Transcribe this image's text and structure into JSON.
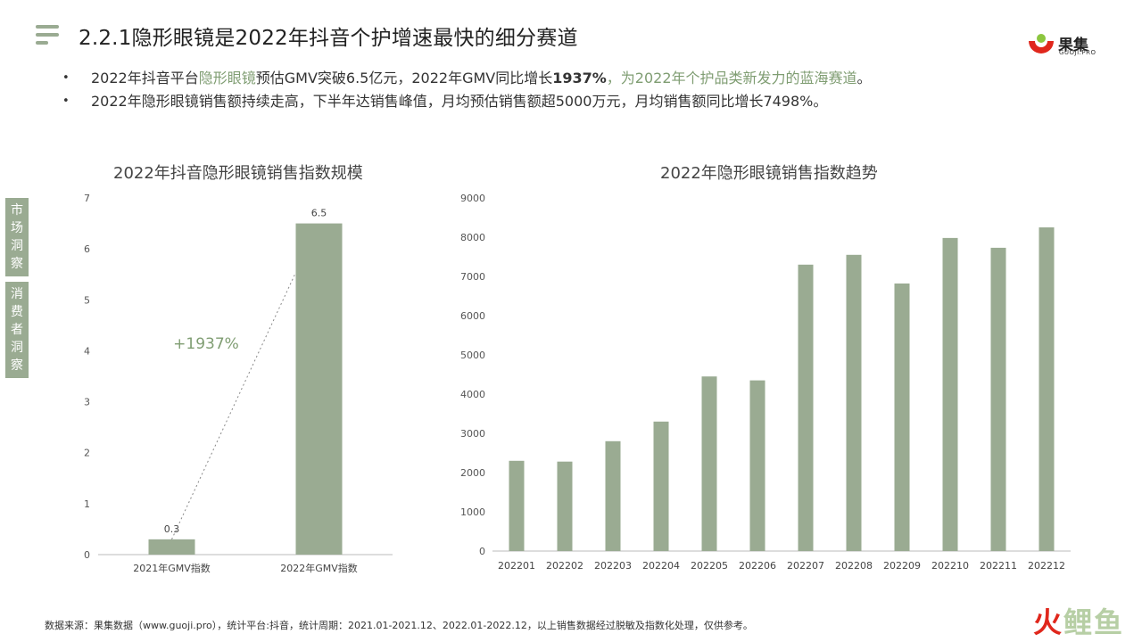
{
  "header": {
    "title": "2.2.1隐形眼镜是2022年抖音个护增速最快的细分赛道",
    "logo_text": "果集",
    "logo_sub": "GUOJI.PRO"
  },
  "bullets": [
    {
      "p1": "2022年抖音平台",
      "hl1": "隐形眼镜",
      "p2": "预估GMV突破6.5亿元，2022年GMV同比增长",
      "bold": "1937%",
      "hl2": "，为2022年个护品类新发力的蓝海赛道",
      "p3": "。"
    },
    {
      "text": "2022年隐形眼镜销售额持续走高，下半年达销售峰值，月均预估销售额超5000万元，月均销售额同比增长7498%。"
    }
  ],
  "side_tabs": [
    {
      "label": "市场洞察",
      "chars": [
        "市",
        "场",
        "洞",
        "察"
      ]
    },
    {
      "label": "消费者洞察",
      "chars": [
        "消",
        "费",
        "者",
        "洞",
        "察"
      ]
    }
  ],
  "colors": {
    "bar": "#9aab92",
    "accent": "#7f9d72"
  },
  "chart_data": [
    {
      "type": "bar",
      "title": "2022年抖音隐形眼镜销售指数规模",
      "categories": [
        "2021年GMV指数",
        "2022年GMV指数"
      ],
      "values": [
        0.3,
        6.5
      ],
      "value_labels": [
        "0.3",
        "6.5"
      ],
      "ylim": [
        0,
        7
      ],
      "yticks": [
        0,
        1,
        2,
        3,
        4,
        5,
        6,
        7
      ],
      "annotation": "+1937%",
      "grid": false
    },
    {
      "type": "bar",
      "title": "2022年隐形眼镜销售指数趋势",
      "categories": [
        "202201",
        "202202",
        "202203",
        "202204",
        "202205",
        "202206",
        "202207",
        "202208",
        "202209",
        "202210",
        "202211",
        "202212"
      ],
      "values": [
        2300,
        2280,
        2800,
        3300,
        4450,
        4350,
        7300,
        7550,
        6820,
        7980,
        7730,
        8250
      ],
      "ylim": [
        0,
        9000
      ],
      "yticks": [
        0,
        1000,
        2000,
        3000,
        4000,
        5000,
        6000,
        7000,
        8000,
        9000
      ],
      "grid": false
    }
  ],
  "footer": {
    "source": "数据来源：果集数据（www.guoji.pro），统计平台:抖音，统计周期：2021.01-2021.12、2022.01-2022.12，以上销售数据经过脱敏及指数化处理，仅供参考。",
    "brand_a": "火",
    "brand_b": "鲤鱼"
  }
}
